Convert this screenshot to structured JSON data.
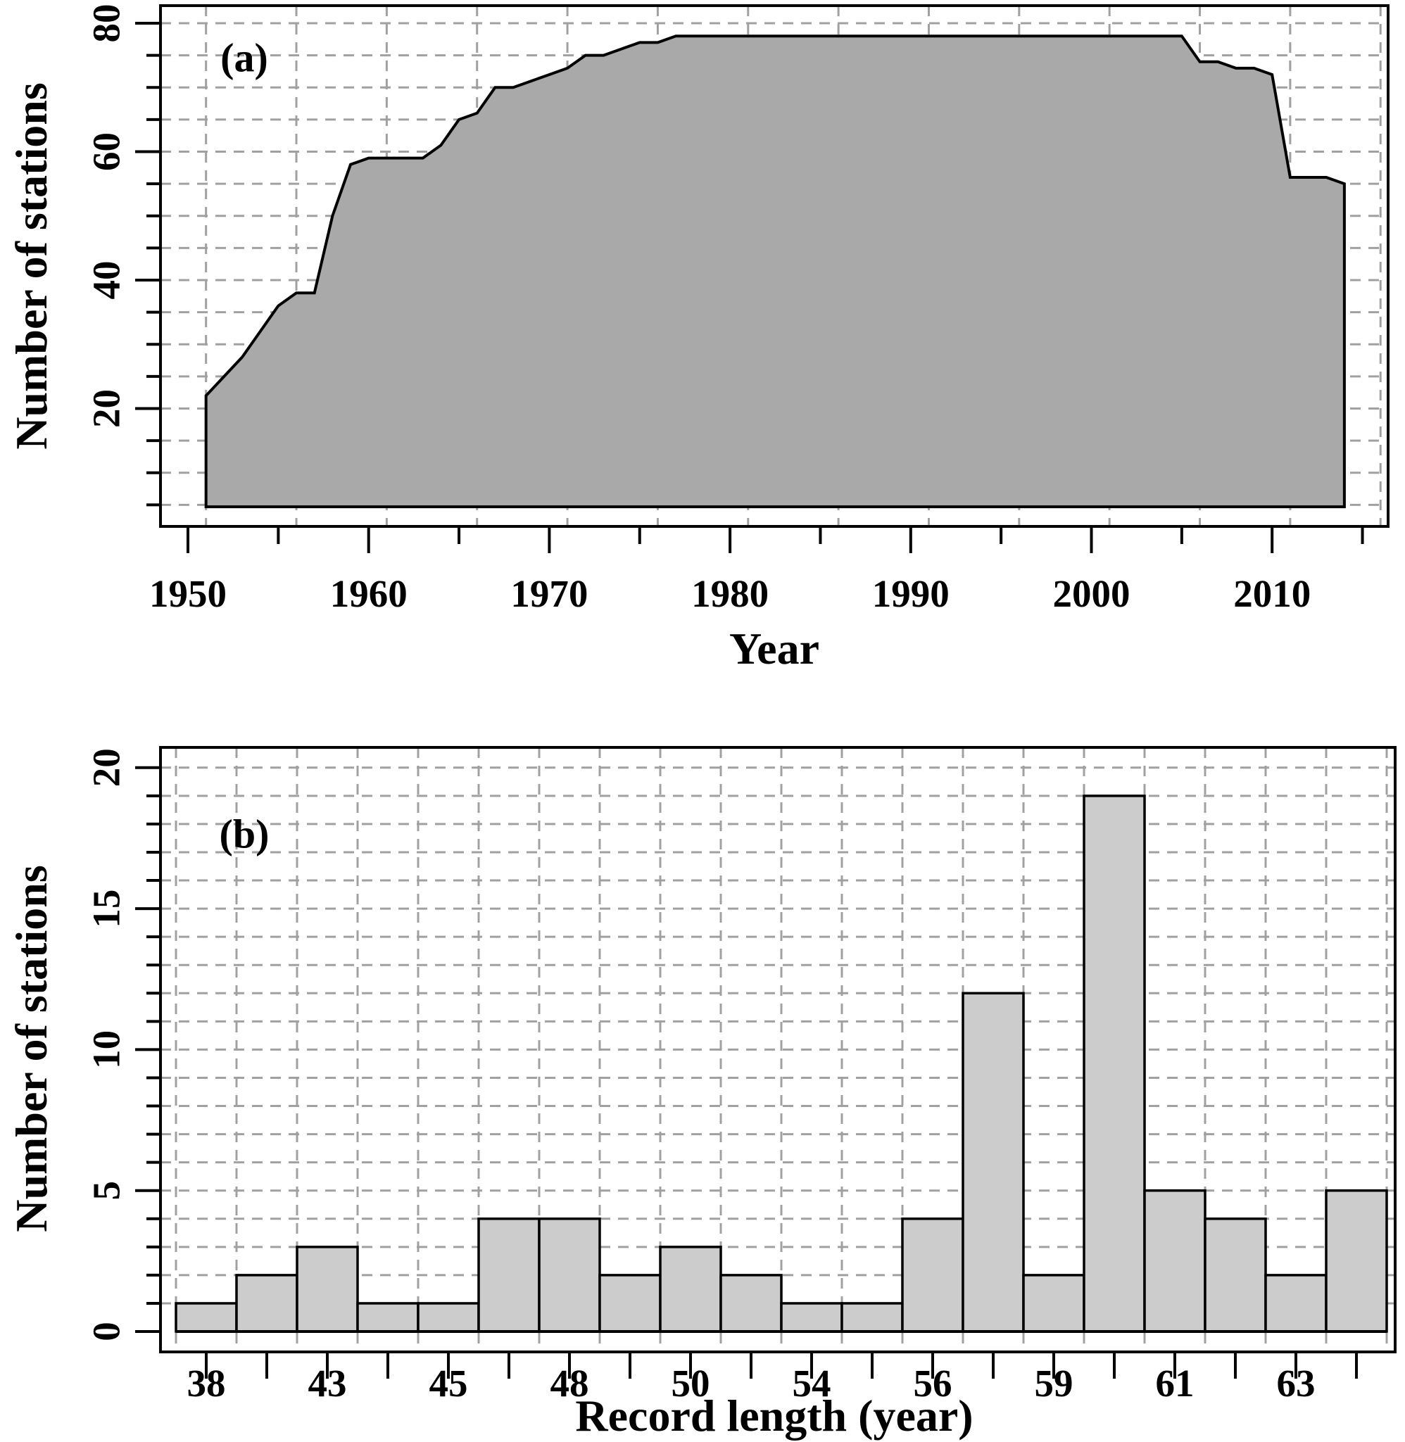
{
  "figure": {
    "background": "#ffffff",
    "description": "Two stacked station-statistics plots with dashed grid"
  },
  "panel_a": {
    "panel_label": "(a)",
    "x_title": "Year",
    "y_title": "Number of stations"
  },
  "panel_b": {
    "panel_label": "(b)",
    "x_title": "Record length (year)",
    "y_title": "Number of stations"
  },
  "colors": {
    "area_fill": "#a9a9a9",
    "bar_fill": "#cccccc",
    "grid": "#a0a0a0",
    "axis": "#000000",
    "text": "#000000"
  },
  "chart_data": [
    {
      "id": "a",
      "type": "area",
      "title": "(a)",
      "xlabel": "Year",
      "ylabel": "Number of stations",
      "x": [
        1951,
        1952,
        1953,
        1954,
        1955,
        1956,
        1957,
        1958,
        1959,
        1960,
        1961,
        1962,
        1963,
        1964,
        1965,
        1966,
        1967,
        1968,
        1969,
        1970,
        1971,
        1972,
        1973,
        1974,
        1975,
        1976,
        1977,
        1978,
        1979,
        1980,
        1981,
        1982,
        1983,
        1984,
        1985,
        1986,
        1987,
        1988,
        1989,
        1990,
        1991,
        1992,
        1993,
        1994,
        1995,
        1996,
        1997,
        1998,
        1999,
        2000,
        2001,
        2002,
        2003,
        2004,
        2005,
        2006,
        2007,
        2008,
        2009,
        2010,
        2011,
        2012,
        2013,
        2014
      ],
      "y": [
        22,
        25,
        28,
        32,
        36,
        38,
        38,
        50,
        58,
        59,
        59,
        59,
        59,
        61,
        65,
        66,
        70,
        70,
        71,
        72,
        73,
        75,
        75,
        76,
        77,
        77,
        78,
        78,
        78,
        78,
        78,
        78,
        78,
        78,
        78,
        78,
        78,
        78,
        78,
        78,
        78,
        78,
        78,
        78,
        78,
        78,
        78,
        78,
        78,
        78,
        78,
        78,
        78,
        78,
        78,
        74,
        74,
        73,
        73,
        72,
        56,
        56,
        56,
        55
      ],
      "area_base": 4.7,
      "xlim": [
        1948.5,
        2016.4
      ],
      "ylim": [
        4.7,
        83
      ],
      "x_major_ticks": [
        1950,
        1960,
        1970,
        1980,
        1990,
        2000,
        2010
      ],
      "x_minor_ticks": [
        1955,
        1965,
        1975,
        1985,
        1995,
        2005,
        2015
      ],
      "y_major_ticks": [
        20,
        40,
        60,
        80
      ],
      "x_grid": [
        1951,
        1956,
        1961,
        1966,
        1971,
        1976,
        1981,
        1986,
        1991,
        1996,
        2001,
        2006,
        2011,
        2016
      ],
      "y_grid": [
        5,
        10,
        15,
        20,
        25,
        30,
        35,
        40,
        45,
        50,
        55,
        60,
        65,
        70,
        75,
        80
      ],
      "grid": "dashed",
      "legend": "none"
    },
    {
      "id": "b",
      "type": "bar",
      "title": "(b)",
      "xlabel": "Record length (year)",
      "ylabel": "Number of stations",
      "values": [
        1,
        2,
        3,
        1,
        1,
        4,
        4,
        2,
        3,
        2,
        1,
        1,
        4,
        12,
        2,
        19,
        5,
        4,
        2,
        5
      ],
      "bar_tick_labels": [
        "38",
        "",
        "43",
        "",
        "45",
        "",
        "48",
        "",
        "50",
        "",
        "54",
        "",
        "56",
        "",
        "59",
        "",
        "61",
        "",
        "63",
        ""
      ],
      "y_major_ticks": [
        0,
        5,
        10,
        15,
        20
      ],
      "y_grid": [
        1,
        2,
        3,
        4,
        5,
        6,
        7,
        8,
        9,
        10,
        11,
        12,
        13,
        14,
        15,
        16,
        17,
        18,
        19,
        20
      ],
      "ylim": [
        0,
        20.7
      ],
      "grid": "dashed",
      "legend": "none"
    }
  ]
}
